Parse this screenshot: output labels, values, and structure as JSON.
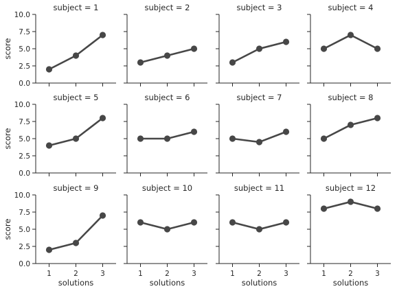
{
  "chart_data": {
    "type": "line",
    "x_label": "solutions",
    "y_label": "score",
    "x_categories": [
      "1",
      "2",
      "3"
    ],
    "y_ticks": [
      "0.0",
      "2.5",
      "5.0",
      "7.5",
      "10.0"
    ],
    "ylim": [
      0,
      10
    ],
    "line_color": "#474747",
    "grid": false,
    "facets": [
      {
        "title": "subject = 1",
        "values": [
          2,
          4,
          7
        ]
      },
      {
        "title": "subject = 2",
        "values": [
          3,
          4,
          5
        ]
      },
      {
        "title": "subject = 3",
        "values": [
          3,
          5,
          6
        ]
      },
      {
        "title": "subject = 4",
        "values": [
          5,
          7,
          5
        ]
      },
      {
        "title": "subject = 5",
        "values": [
          4,
          5,
          8
        ]
      },
      {
        "title": "subject = 6",
        "values": [
          5,
          5,
          6
        ]
      },
      {
        "title": "subject = 7",
        "values": [
          5,
          4.5,
          6
        ]
      },
      {
        "title": "subject = 8",
        "values": [
          5,
          7,
          8
        ]
      },
      {
        "title": "subject = 9",
        "values": [
          2,
          3,
          7
        ]
      },
      {
        "title": "subject = 10",
        "values": [
          6,
          5,
          6
        ]
      },
      {
        "title": "subject = 11",
        "values": [
          6,
          5,
          6
        ]
      },
      {
        "title": "subject = 12",
        "values": [
          8,
          9,
          8
        ]
      }
    ]
  }
}
